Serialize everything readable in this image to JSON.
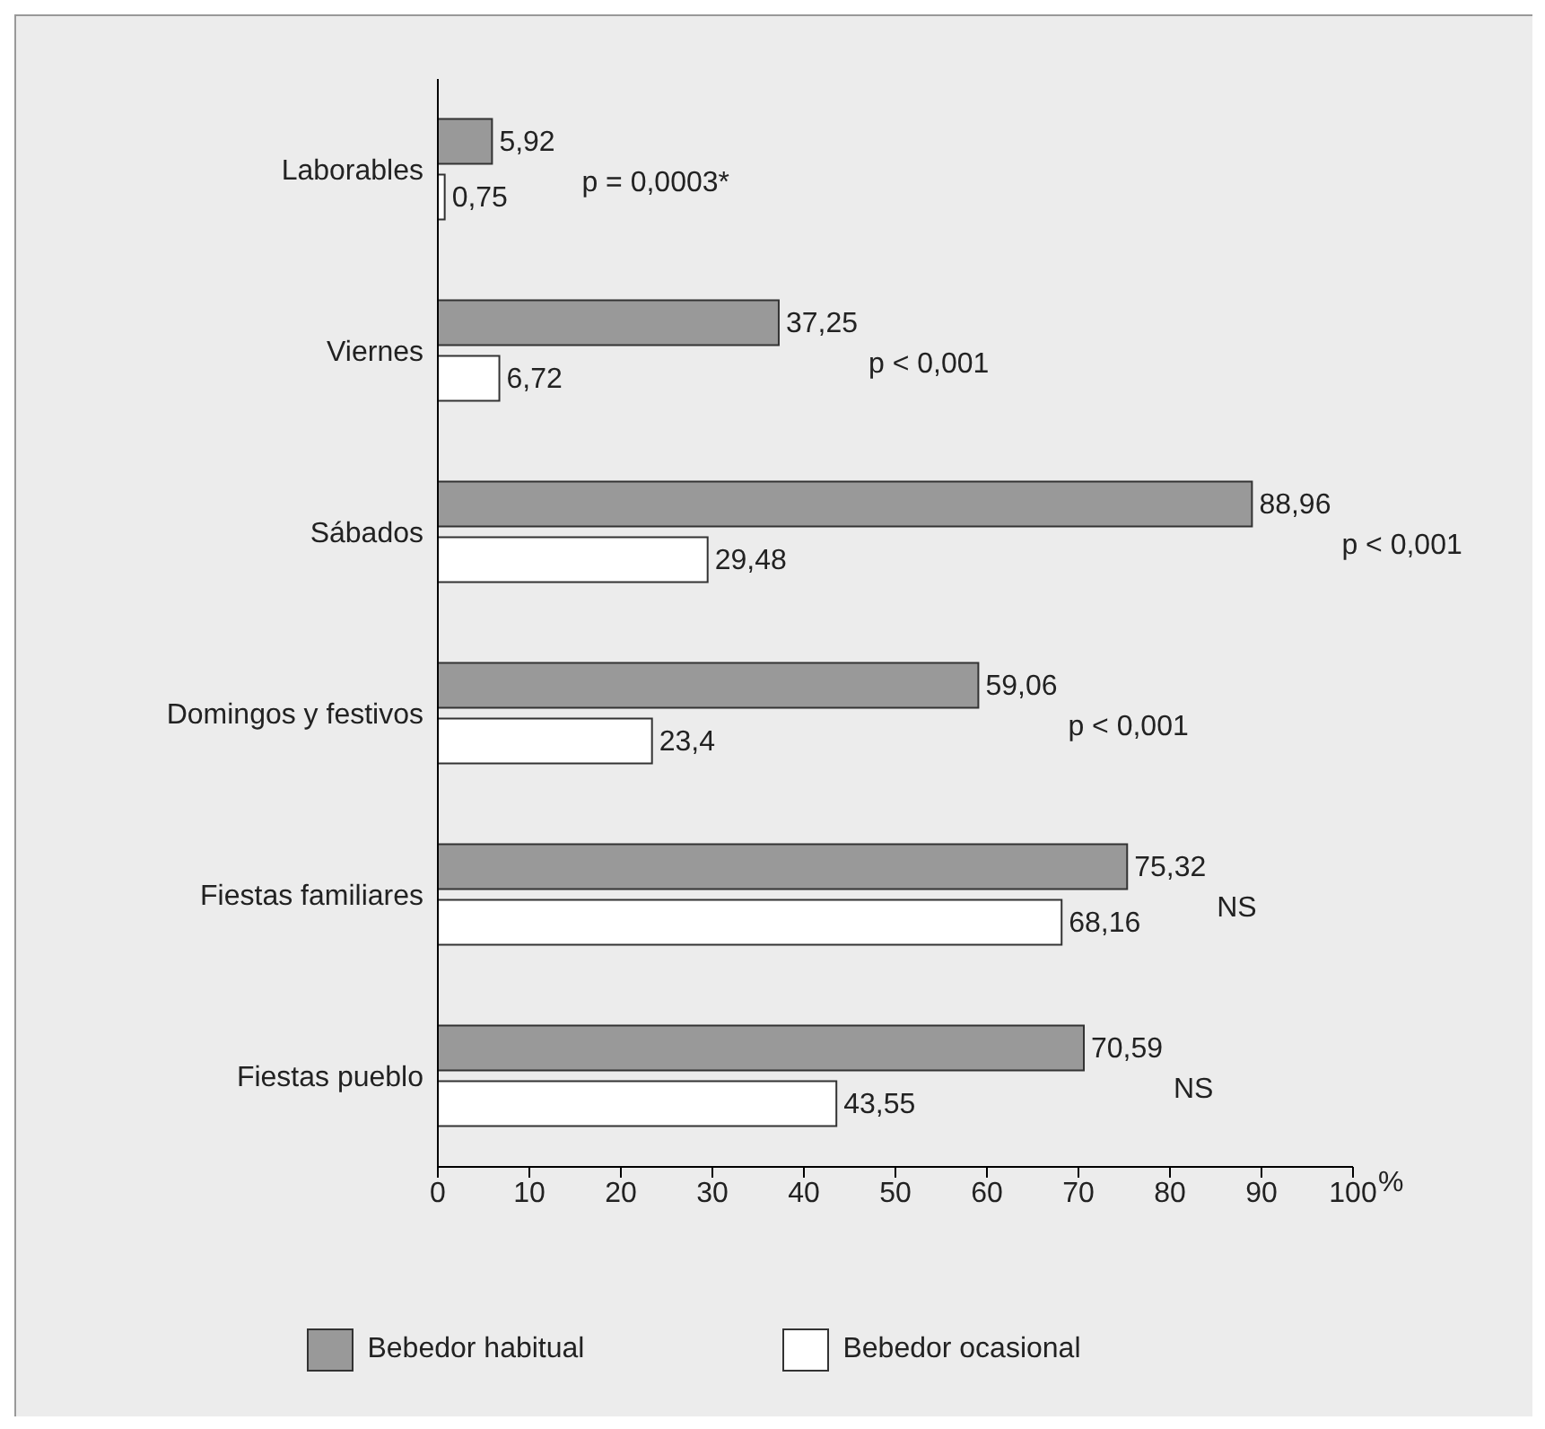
{
  "chart_data": {
    "type": "bar",
    "orientation": "horizontal",
    "categories": [
      "Laborables",
      "Viernes",
      "Sábados",
      "Domingos y festivos",
      "Fiestas familiares",
      "Fiestas pueblo"
    ],
    "series": [
      {
        "name": "Bebedor habitual",
        "color": "#999999",
        "values": [
          5.92,
          37.25,
          88.96,
          59.06,
          75.32,
          70.59
        ],
        "value_labels": [
          "5,92",
          "37,25",
          "88,96",
          "59,06",
          "75,32",
          "70,59"
        ]
      },
      {
        "name": "Bebedor ocasional",
        "color": "#ffffff",
        "values": [
          0.75,
          6.72,
          29.48,
          23.4,
          68.16,
          43.55
        ],
        "value_labels": [
          "0,75",
          "6,72",
          "29,48",
          "23,4",
          "68,16",
          "43,55"
        ]
      }
    ],
    "xlim": [
      0,
      100
    ],
    "xticks": [
      0,
      10,
      20,
      30,
      40,
      50,
      60,
      70,
      80,
      90,
      100
    ],
    "xlabel": "%",
    "grid": false,
    "legend": "bottom",
    "annotations": [
      "p = 0,0003*",
      "p < 0,001",
      "p < 0,001",
      "p < 0,001",
      "NS",
      "NS"
    ]
  }
}
